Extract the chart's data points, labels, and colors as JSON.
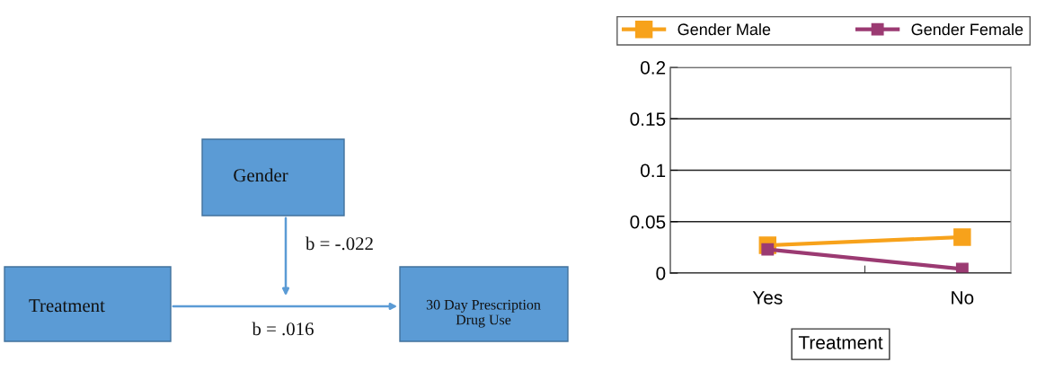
{
  "chart_data": [
    {
      "type": "other",
      "annotations": [
        "Gender",
        "Treatment",
        "30 Day Prescription\nDrug Use",
        "b = -.022",
        "b = .016"
      ]
    },
    {
      "type": "line",
      "categories": [
        "Yes",
        "No"
      ],
      "xlabel": "Treatment",
      "ylim": [
        0,
        0.2
      ],
      "yticks": [
        0,
        0.05,
        0.1,
        0.15,
        0.2
      ],
      "grid": "y",
      "legend": "top",
      "marker": "square",
      "line_style": "solid",
      "series": [
        {
          "name": "Gender Male",
          "color": "#f7a21b",
          "values": [
            0.027,
            0.035
          ]
        },
        {
          "name": "Gender Female",
          "color": "#9b3a72",
          "values": [
            0.023,
            0.004
          ]
        }
      ]
    }
  ]
}
